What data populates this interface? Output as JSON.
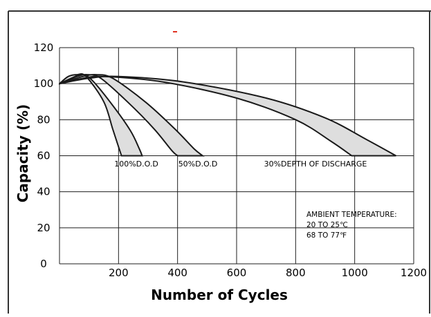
{
  "chart_data": {
    "type": "line",
    "title": "",
    "xlabel": "Number of Cycles",
    "ylabel": "Capacity (%)",
    "xlim": [
      0,
      1200
    ],
    "ylim": [
      0,
      120
    ],
    "x_ticks": [
      200,
      400,
      600,
      800,
      1000,
      1200
    ],
    "y_ticks": [
      0,
      20,
      40,
      60,
      80,
      100,
      120
    ],
    "x_tick_labels": [
      "200",
      "400",
      "600",
      "800",
      "1000",
      "1200"
    ],
    "y_tick_labels": [
      "0",
      "20",
      "40",
      "60",
      "80",
      "100",
      "120"
    ],
    "grid": true,
    "series": [
      {
        "name": "100%D.O.D",
        "upper": [
          [
            0,
            100
          ],
          [
            30,
            104
          ],
          [
            60,
            105
          ],
          [
            90,
            104
          ],
          [
            150,
            90
          ],
          [
            180,
            75
          ],
          [
            200,
            65
          ],
          [
            210,
            60
          ]
        ],
        "lower": [
          [
            0,
            100
          ],
          [
            40,
            103
          ],
          [
            75,
            105
          ],
          [
            110,
            102
          ],
          [
            180,
            88
          ],
          [
            240,
            74
          ],
          [
            270,
            64
          ],
          [
            280,
            60
          ]
        ]
      },
      {
        "name": "50%D.O.D",
        "upper": [
          [
            0,
            100
          ],
          [
            60,
            104
          ],
          [
            95,
            105
          ],
          [
            140,
            103
          ],
          [
            230,
            90
          ],
          [
            320,
            75
          ],
          [
            380,
            63
          ],
          [
            400,
            60
          ]
        ],
        "lower": [
          [
            0,
            100
          ],
          [
            80,
            104
          ],
          [
            125,
            105
          ],
          [
            180,
            103
          ],
          [
            290,
            90
          ],
          [
            390,
            75
          ],
          [
            455,
            64
          ],
          [
            485,
            60
          ]
        ]
      },
      {
        "name": "30%DEPTH OF DISCHARGE",
        "upper": [
          [
            0,
            100
          ],
          [
            80,
            103
          ],
          [
            150,
            104
          ],
          [
            350,
            101
          ],
          [
            600,
            92
          ],
          [
            800,
            80
          ],
          [
            920,
            68
          ],
          [
            990,
            60
          ]
        ],
        "lower": [
          [
            0,
            100
          ],
          [
            100,
            103
          ],
          [
            200,
            104
          ],
          [
            420,
            101
          ],
          [
            700,
            92
          ],
          [
            900,
            81
          ],
          [
            1040,
            69
          ],
          [
            1140,
            60
          ]
        ]
      }
    ],
    "annotation": [
      "AMBIENT TEMPERATURE:",
      "20 TO 25℃",
      "68 TO 77℉"
    ]
  }
}
